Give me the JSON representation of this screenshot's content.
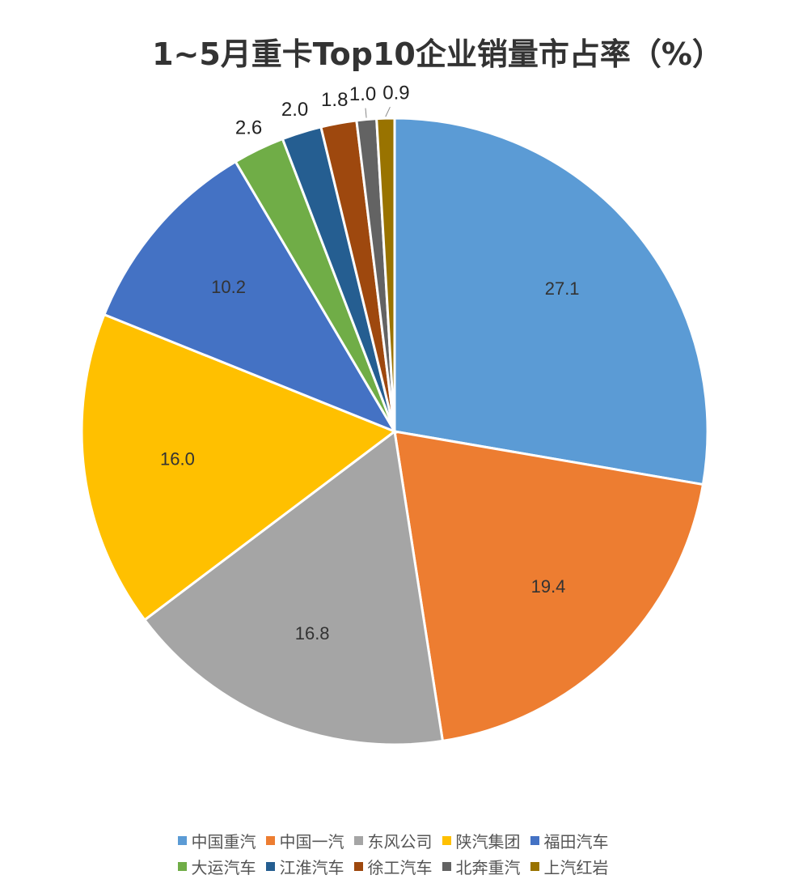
{
  "title": "1~5月重卡Top10企业销量市占率（%）",
  "chart_data": {
    "type": "pie",
    "title": "1~5月重卡Top10企业销量市占率（%）",
    "categories": [
      "中国重汽",
      "中国一汽",
      "东风公司",
      "陕汽集团",
      "福田汽车",
      "大运汽车",
      "江淮汽车",
      "徐工汽车",
      "北奔重汽",
      "上汽红岩"
    ],
    "values": [
      27.1,
      19.4,
      16.8,
      16.0,
      10.2,
      2.6,
      2.0,
      1.8,
      1.0,
      0.9
    ],
    "colors": [
      "#5B9BD5",
      "#ED7D31",
      "#A5A5A5",
      "#FFC000",
      "#4472C4",
      "#70AD47",
      "#255E91",
      "#9E480E",
      "#636363",
      "#997300"
    ],
    "start_angle_deg": 0,
    "direction": "clockwise",
    "data_labels": true,
    "legend_position": "bottom",
    "legend_rows": 2
  }
}
